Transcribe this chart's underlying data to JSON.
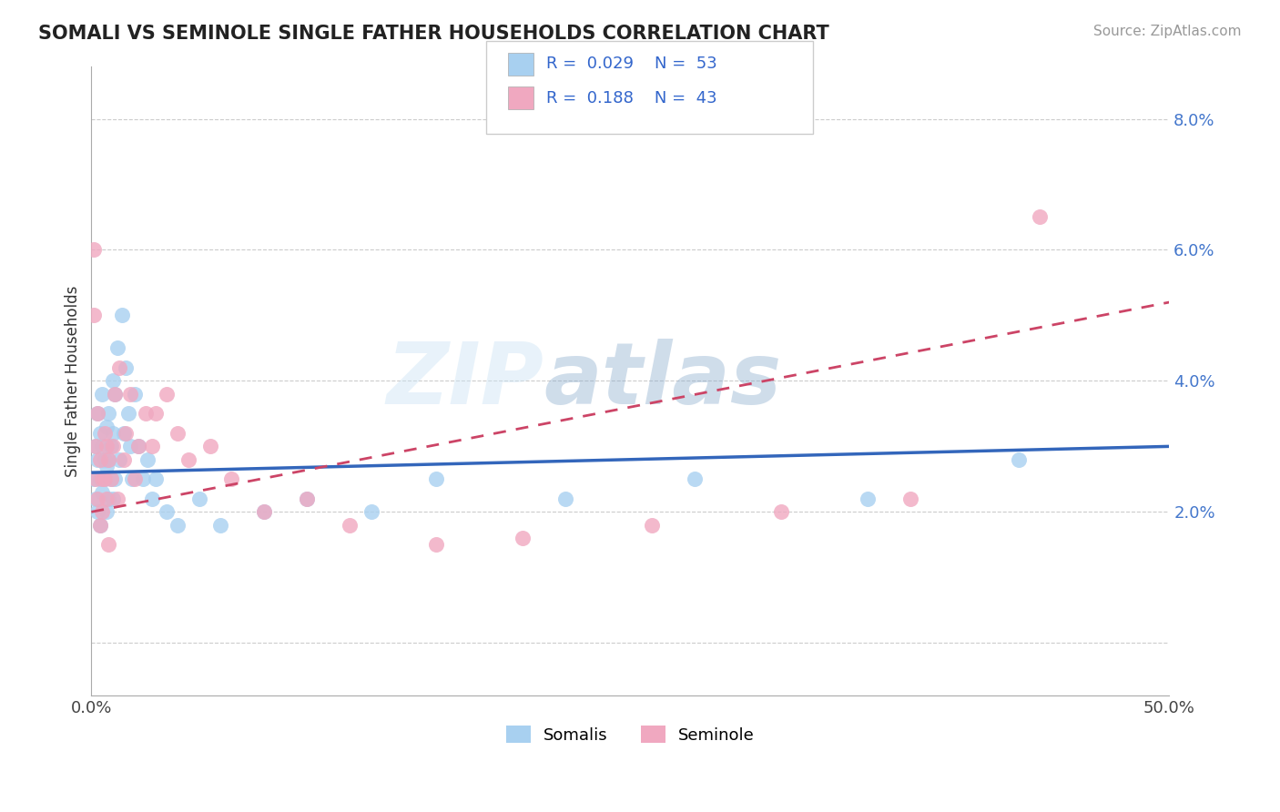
{
  "title": "SOMALI VS SEMINOLE SINGLE FATHER HOUSEHOLDS CORRELATION CHART",
  "source": "Source: ZipAtlas.com",
  "ylabel": "Single Father Households",
  "xlim": [
    0.0,
    0.5
  ],
  "ylim": [
    -0.008,
    0.088
  ],
  "yticks": [
    0.0,
    0.02,
    0.04,
    0.06,
    0.08
  ],
  "ytick_labels": [
    "",
    "2.0%",
    "4.0%",
    "6.0%",
    "8.0%"
  ],
  "somali_color": "#a8d0f0",
  "seminole_color": "#f0a8c0",
  "somali_line_color": "#3366bb",
  "seminole_line_color": "#cc4466",
  "watermark": "ZIPatlas",
  "somali_x": [
    0.001,
    0.002,
    0.002,
    0.003,
    0.003,
    0.003,
    0.004,
    0.004,
    0.004,
    0.005,
    0.005,
    0.005,
    0.006,
    0.006,
    0.007,
    0.007,
    0.007,
    0.008,
    0.008,
    0.008,
    0.009,
    0.009,
    0.01,
    0.01,
    0.01,
    0.011,
    0.011,
    0.012,
    0.013,
    0.014,
    0.015,
    0.016,
    0.017,
    0.018,
    0.019,
    0.02,
    0.022,
    0.024,
    0.026,
    0.028,
    0.03,
    0.035,
    0.04,
    0.05,
    0.06,
    0.08,
    0.1,
    0.13,
    0.16,
    0.22,
    0.28,
    0.36,
    0.43
  ],
  "somali_y": [
    0.025,
    0.03,
    0.022,
    0.035,
    0.028,
    0.02,
    0.032,
    0.025,
    0.018,
    0.03,
    0.023,
    0.038,
    0.025,
    0.028,
    0.033,
    0.027,
    0.02,
    0.035,
    0.028,
    0.022,
    0.03,
    0.025,
    0.04,
    0.032,
    0.022,
    0.038,
    0.025,
    0.045,
    0.028,
    0.05,
    0.032,
    0.042,
    0.035,
    0.03,
    0.025,
    0.038,
    0.03,
    0.025,
    0.028,
    0.022,
    0.025,
    0.02,
    0.018,
    0.022,
    0.018,
    0.02,
    0.022,
    0.02,
    0.025,
    0.022,
    0.025,
    0.022,
    0.028
  ],
  "seminole_x": [
    0.001,
    0.001,
    0.002,
    0.002,
    0.003,
    0.003,
    0.004,
    0.004,
    0.005,
    0.005,
    0.006,
    0.006,
    0.007,
    0.007,
    0.008,
    0.008,
    0.009,
    0.01,
    0.011,
    0.012,
    0.013,
    0.015,
    0.016,
    0.018,
    0.02,
    0.022,
    0.025,
    0.028,
    0.03,
    0.035,
    0.04,
    0.045,
    0.055,
    0.065,
    0.08,
    0.1,
    0.12,
    0.16,
    0.2,
    0.26,
    0.32,
    0.38,
    0.44
  ],
  "seminole_y": [
    0.06,
    0.05,
    0.025,
    0.03,
    0.035,
    0.022,
    0.028,
    0.018,
    0.025,
    0.02,
    0.032,
    0.025,
    0.022,
    0.03,
    0.028,
    0.015,
    0.025,
    0.03,
    0.038,
    0.022,
    0.042,
    0.028,
    0.032,
    0.038,
    0.025,
    0.03,
    0.035,
    0.03,
    0.035,
    0.038,
    0.032,
    0.028,
    0.03,
    0.025,
    0.02,
    0.022,
    0.018,
    0.015,
    0.016,
    0.018,
    0.02,
    0.022,
    0.065
  ],
  "somali_line_start_x": 0.0,
  "somali_line_start_y": 0.026,
  "somali_line_end_x": 0.5,
  "somali_line_end_y": 0.03,
  "seminole_line_start_x": 0.0,
  "seminole_line_start_y": 0.02,
  "seminole_line_end_x": 0.5,
  "seminole_line_end_y": 0.052,
  "background_color": "#ffffff",
  "grid_color": "#cccccc"
}
